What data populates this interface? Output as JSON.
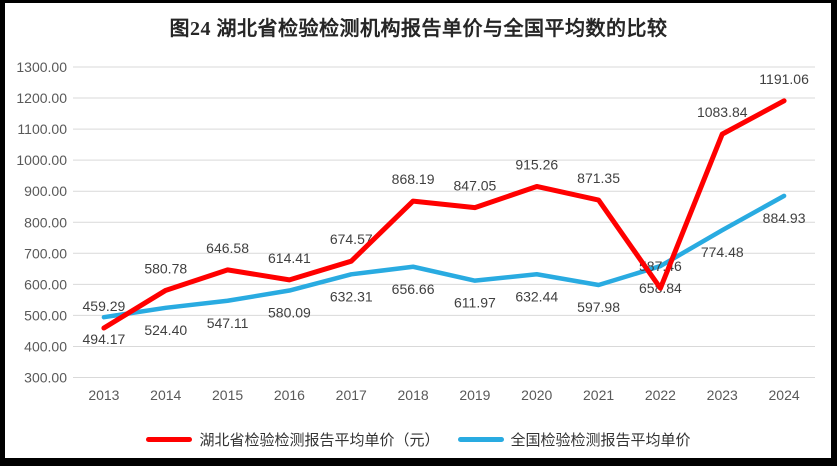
{
  "title": "图24 湖北省检验检测机构报告单价与全国平均数的比较",
  "chart_data": {
    "type": "line",
    "title": "图24 湖北省检验检测机构报告单价与全国平均数的比较",
    "categories": [
      "2013",
      "2014",
      "2015",
      "2016",
      "2017",
      "2018",
      "2019",
      "2020",
      "2021",
      "2022",
      "2023",
      "2024"
    ],
    "series": [
      {
        "name": "湖北省检验检测报告平均单价（元）",
        "color": "#FF0000",
        "stroke_width": 5,
        "label_position": "above",
        "values": [
          459.29,
          580.78,
          646.58,
          614.41,
          674.57,
          868.19,
          847.05,
          915.26,
          871.35,
          587.46,
          1083.84,
          1191.06
        ]
      },
      {
        "name": "全国检验检测报告平均单价",
        "color": "#29ABE1",
        "stroke_width": 4.5,
        "label_position": "below",
        "values": [
          494.17,
          524.4,
          547.11,
          580.09,
          632.31,
          656.66,
          611.97,
          632.44,
          597.98,
          658.84,
          774.48,
          884.93
        ]
      }
    ],
    "ylim": [
      300,
      1300
    ],
    "ytick_step": 100,
    "ytick_decimals": 2,
    "data_label_decimals": 2,
    "grid": true,
    "legend_position": "bottom"
  },
  "colors": {
    "frame": "#000000",
    "background": "#FFFFFF",
    "gridline": "#D9D9D9",
    "axis_text": "#595959",
    "data_label_text": "#404040",
    "title_text": "#262626",
    "legend_text": "#333333"
  }
}
